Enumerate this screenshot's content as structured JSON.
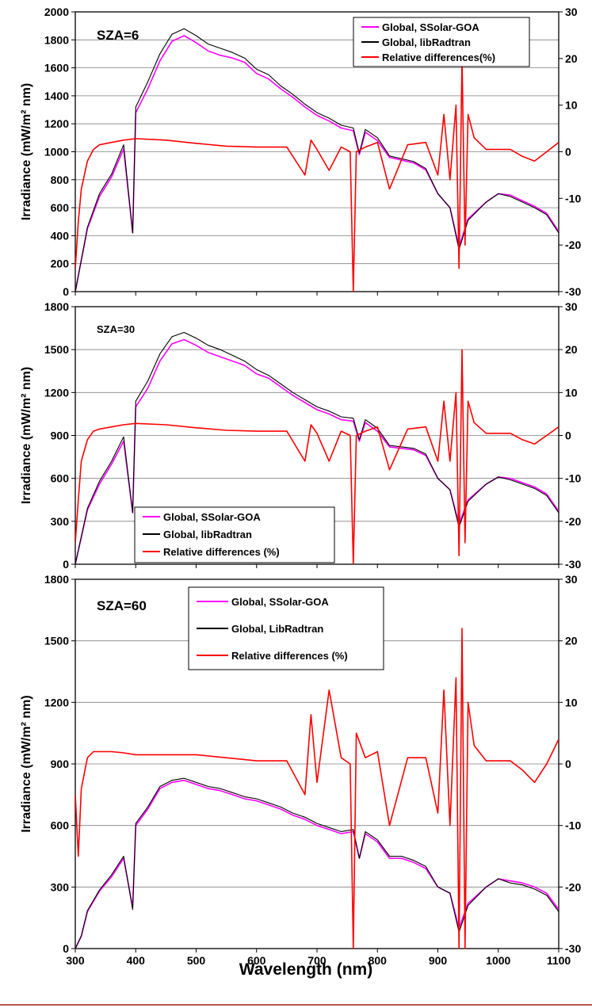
{
  "figure": {
    "xlabel": "Wavelength (nm)",
    "ylabel": "Irradiance (mW/m² nm)",
    "x_ticks": [
      300,
      400,
      500,
      600,
      700,
      800,
      900,
      1000,
      1100
    ]
  },
  "colors": {
    "ssolar": "#ff00ff",
    "libradtran": "#000000",
    "reldiff": "#ff0000",
    "border_line": "#c0504d"
  },
  "chart_data": [
    {
      "type": "line",
      "title": "SZA=6",
      "xlabel": "",
      "ylabel": "Irradiance (mW/m² nm)",
      "xlim": [
        300,
        1100
      ],
      "ylim": [
        0,
        2000
      ],
      "y_ticks": [
        0,
        200,
        400,
        600,
        800,
        1000,
        1200,
        1400,
        1600,
        1800,
        2000
      ],
      "y2lim": [
        -30,
        30
      ],
      "y2_ticks": [
        -30,
        -20,
        -10,
        0,
        10,
        20,
        30
      ],
      "grid": true,
      "legend_position": "top-right",
      "series": [
        {
          "name": "Global, SSolar-GOA",
          "axis": "left",
          "x": [
            300,
            320,
            340,
            360,
            380,
            395,
            400,
            420,
            440,
            460,
            480,
            500,
            520,
            540,
            560,
            580,
            600,
            620,
            640,
            660,
            680,
            700,
            720,
            740,
            760,
            770,
            780,
            800,
            820,
            840,
            860,
            880,
            900,
            920,
            935,
            950,
            980,
            1000,
            1020,
            1040,
            1060,
            1080,
            1100
          ],
          "y": [
            0,
            450,
            680,
            820,
            1020,
            420,
            1280,
            1450,
            1650,
            1790,
            1830,
            1780,
            1720,
            1690,
            1670,
            1640,
            1560,
            1520,
            1450,
            1390,
            1320,
            1260,
            1220,
            1170,
            1150,
            980,
            1140,
            1080,
            960,
            940,
            920,
            870,
            700,
            600,
            320,
            520,
            640,
            700,
            690,
            650,
            610,
            560,
            430
          ]
        },
        {
          "name": "Global, libRadtran",
          "axis": "left",
          "x": [
            300,
            320,
            340,
            360,
            380,
            395,
            400,
            420,
            440,
            460,
            480,
            500,
            520,
            540,
            560,
            580,
            600,
            620,
            640,
            660,
            680,
            700,
            720,
            740,
            760,
            770,
            780,
            800,
            820,
            840,
            860,
            880,
            900,
            920,
            935,
            950,
            980,
            1000,
            1020,
            1040,
            1060,
            1080,
            1100
          ],
          "y": [
            0,
            460,
            700,
            840,
            1050,
            420,
            1320,
            1500,
            1700,
            1840,
            1880,
            1830,
            1770,
            1740,
            1710,
            1670,
            1590,
            1550,
            1470,
            1410,
            1340,
            1280,
            1240,
            1190,
            1170,
            990,
            1160,
            1100,
            970,
            950,
            930,
            880,
            700,
            600,
            300,
            510,
            640,
            700,
            680,
            640,
            600,
            550,
            420
          ]
        },
        {
          "name": "Relative differences(%)",
          "axis": "right",
          "x": [
            300,
            305,
            310,
            320,
            330,
            340,
            360,
            380,
            400,
            450,
            500,
            550,
            600,
            650,
            680,
            690,
            700,
            720,
            740,
            755,
            760,
            765,
            780,
            800,
            820,
            850,
            880,
            900,
            910,
            920,
            930,
            935,
            940,
            945,
            950,
            960,
            980,
            1000,
            1020,
            1040,
            1060,
            1080,
            1100
          ],
          "y": [
            -25,
            -15,
            -8,
            -2,
            0.5,
            1.5,
            2,
            2.5,
            2.8,
            2.5,
            1.8,
            1.2,
            1.0,
            1.0,
            -5,
            2.5,
            0.5,
            -4,
            1,
            0,
            -30,
            0,
            1,
            2,
            -8,
            1.5,
            2,
            -5,
            8,
            -6,
            10,
            -25,
            20,
            -20,
            8,
            3,
            0.5,
            0.5,
            0.5,
            -1,
            -2,
            0,
            2
          ]
        }
      ]
    },
    {
      "type": "line",
      "title": "SZA=30",
      "xlabel": "",
      "ylabel": "Irradiance (mW/m² nm)",
      "xlim": [
        300,
        1100
      ],
      "ylim": [
        0,
        1800
      ],
      "y_ticks": [
        0,
        300,
        600,
        900,
        1200,
        1500,
        1800
      ],
      "y2lim": [
        -30,
        30
      ],
      "y2_ticks": [
        -30,
        -20,
        -10,
        0,
        10,
        20,
        30
      ],
      "grid": true,
      "legend_position": "bottom-left",
      "series": [
        {
          "name": "Global, SSolar-GOA",
          "axis": "left",
          "x": [
            300,
            320,
            340,
            360,
            380,
            395,
            400,
            420,
            440,
            460,
            480,
            500,
            520,
            540,
            560,
            580,
            600,
            620,
            640,
            660,
            680,
            700,
            720,
            740,
            760,
            770,
            780,
            800,
            820,
            840,
            860,
            880,
            900,
            920,
            935,
            950,
            980,
            1000,
            1020,
            1040,
            1060,
            1080,
            1100
          ],
          "y": [
            0,
            380,
            560,
            700,
            860,
            360,
            1100,
            1230,
            1420,
            1540,
            1570,
            1530,
            1480,
            1450,
            1420,
            1390,
            1330,
            1300,
            1240,
            1180,
            1130,
            1080,
            1050,
            1010,
            1000,
            860,
            990,
            930,
            820,
            810,
            800,
            760,
            600,
            520,
            280,
            450,
            560,
            610,
            600,
            570,
            540,
            490,
            370
          ]
        },
        {
          "name": "Global, libRadtran",
          "axis": "left",
          "x": [
            300,
            320,
            340,
            360,
            380,
            395,
            400,
            420,
            440,
            460,
            480,
            500,
            520,
            540,
            560,
            580,
            600,
            620,
            640,
            660,
            680,
            700,
            720,
            740,
            760,
            770,
            780,
            800,
            820,
            840,
            860,
            880,
            900,
            920,
            935,
            950,
            980,
            1000,
            1020,
            1040,
            1060,
            1080,
            1100
          ],
          "y": [
            0,
            390,
            580,
            720,
            890,
            360,
            1140,
            1280,
            1470,
            1590,
            1620,
            1580,
            1530,
            1500,
            1460,
            1420,
            1360,
            1320,
            1260,
            1200,
            1150,
            1100,
            1070,
            1030,
            1020,
            870,
            1010,
            950,
            830,
            820,
            810,
            770,
            600,
            520,
            260,
            440,
            560,
            610,
            590,
            560,
            530,
            480,
            360
          ]
        },
        {
          "name": "Relative differences (%)",
          "axis": "right",
          "x": [
            300,
            305,
            310,
            320,
            330,
            340,
            360,
            380,
            400,
            450,
            500,
            550,
            600,
            650,
            680,
            690,
            700,
            720,
            740,
            755,
            760,
            765,
            780,
            800,
            820,
            850,
            880,
            900,
            910,
            920,
            930,
            935,
            940,
            945,
            950,
            960,
            980,
            1000,
            1020,
            1040,
            1060,
            1080,
            1100
          ],
          "y": [
            -25,
            -15,
            -6,
            -1,
            1,
            1.5,
            2,
            2.5,
            2.8,
            2.5,
            1.8,
            1.2,
            1.0,
            1.0,
            -6,
            2.5,
            0.5,
            -6,
            1,
            0,
            -30,
            0,
            1,
            2,
            -8,
            1.5,
            2,
            -6,
            8,
            -6,
            10,
            -28,
            20,
            -25,
            8,
            3,
            0.5,
            0.5,
            0.5,
            -1,
            -2,
            0,
            2
          ]
        }
      ]
    },
    {
      "type": "line",
      "title": "SZA=60",
      "xlabel": "Wavelength (nm)",
      "ylabel": "Irradiance (mW/m² nm)",
      "xlim": [
        300,
        1100
      ],
      "ylim": [
        0,
        1800
      ],
      "y_ticks": [
        0,
        300,
        600,
        900,
        1200,
        1500,
        1800
      ],
      "y2lim": [
        -30,
        30
      ],
      "y2_ticks": [
        -30,
        -20,
        -10,
        0,
        10,
        20,
        30
      ],
      "grid": true,
      "legend_position": "top-center",
      "series": [
        {
          "name": "Global, SSolar-GOA",
          "axis": "left",
          "x": [
            300,
            310,
            320,
            340,
            360,
            380,
            395,
            400,
            420,
            440,
            460,
            480,
            500,
            520,
            540,
            560,
            580,
            600,
            620,
            640,
            660,
            680,
            700,
            720,
            740,
            760,
            770,
            780,
            800,
            820,
            840,
            860,
            880,
            900,
            920,
            935,
            950,
            980,
            1000,
            1020,
            1040,
            1060,
            1080,
            1100
          ],
          "y": [
            0,
            60,
            180,
            280,
            350,
            440,
            200,
            600,
            680,
            780,
            810,
            820,
            800,
            780,
            770,
            750,
            730,
            720,
            700,
            680,
            650,
            630,
            600,
            580,
            560,
            570,
            440,
            560,
            520,
            440,
            440,
            420,
            390,
            300,
            270,
            100,
            220,
            300,
            340,
            330,
            320,
            300,
            270,
            190
          ]
        },
        {
          "name": "Global, LibRadtran",
          "axis": "left",
          "x": [
            300,
            310,
            320,
            340,
            360,
            380,
            395,
            400,
            420,
            440,
            460,
            480,
            500,
            520,
            540,
            560,
            580,
            600,
            620,
            640,
            660,
            680,
            700,
            720,
            740,
            760,
            770,
            780,
            800,
            820,
            840,
            860,
            880,
            900,
            920,
            935,
            950,
            980,
            1000,
            1020,
            1040,
            1060,
            1080,
            1100
          ],
          "y": [
            0,
            62,
            185,
            285,
            360,
            450,
            190,
            610,
            690,
            790,
            820,
            830,
            810,
            790,
            780,
            760,
            740,
            730,
            710,
            690,
            660,
            640,
            610,
            590,
            570,
            580,
            440,
            570,
            530,
            450,
            450,
            430,
            400,
            300,
            270,
            80,
            210,
            300,
            340,
            320,
            310,
            290,
            260,
            180
          ]
        },
        {
          "name": "Relative differences (%)",
          "axis": "right",
          "x": [
            300,
            305,
            310,
            320,
            330,
            340,
            360,
            380,
            400,
            450,
            500,
            550,
            600,
            650,
            680,
            690,
            700,
            720,
            740,
            755,
            760,
            765,
            780,
            800,
            820,
            850,
            880,
            900,
            910,
            920,
            930,
            935,
            940,
            945,
            950,
            960,
            980,
            1000,
            1020,
            1040,
            1060,
            1080,
            1100
          ],
          "y": [
            -5,
            -15,
            -4,
            1,
            2,
            2,
            2,
            1.8,
            1.5,
            1.5,
            1.5,
            1.0,
            0.5,
            0.5,
            -5,
            8,
            -3,
            12,
            1,
            0,
            -30,
            5,
            1,
            2,
            -10,
            1,
            1,
            -8,
            12,
            -10,
            14,
            -30,
            22,
            -30,
            10,
            3,
            0.5,
            0.5,
            0.5,
            -1,
            -3,
            0,
            4
          ]
        }
      ]
    }
  ]
}
